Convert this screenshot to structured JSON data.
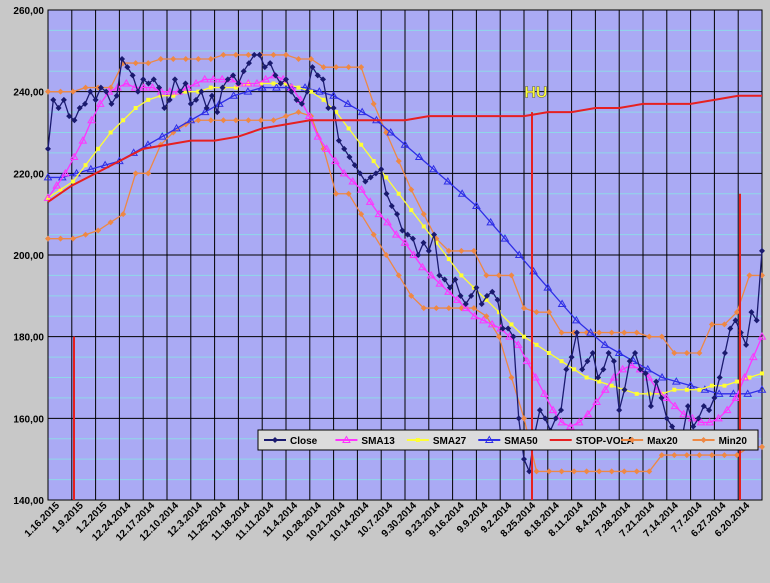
{
  "chart_data": {
    "type": "line",
    "title": "",
    "xlabel": "",
    "ylabel": "",
    "ylim": [
      140,
      260
    ],
    "y_ticks": [
      "140,00",
      "160,00",
      "180,00",
      "200,00",
      "220,00",
      "240,00",
      "260,00"
    ],
    "x_tick_labels": [
      "1.16.2015",
      "1.9.2015",
      "1.2.2015",
      "12.24.2014",
      "12.17.2014",
      "12.10.2014",
      "12.3.2014",
      "11.25.2014",
      "11.18.2014",
      "11.11.2014",
      "11.4.2014",
      "10.28.2014",
      "10.21.2014",
      "10.14.2014",
      "10.7.2014",
      "9.30.2014",
      "9.23.2014",
      "9.16.2014",
      "9.9.2014",
      "9.2.2014",
      "8.25.2014",
      "8.18.2014",
      "8.11.2014",
      "8.4.2014",
      "7.28.2014",
      "7.21.2014",
      "7.14.2014",
      "7.7.2014",
      "6.27.2014",
      "6.20.2014"
    ],
    "annotations": [
      {
        "text": "HU",
        "x": "8.25.2014",
        "y": 240
      }
    ],
    "legend_position": "bottom-right",
    "grid": true,
    "colors": {
      "plot_bg": "#aaaaf4",
      "page_bg": "#c8c8c8",
      "close": "#1a1a6e",
      "sma13": "#ff33ff",
      "sma27": "#ffff33",
      "sma50": "#2e2ee6",
      "stop_vola": "#e62020",
      "max20": "#ee8844",
      "min20": "#ee8844"
    },
    "series": [
      {
        "name": "Close",
        "color_key": "close",
        "marker": "diamond",
        "values": [
          226,
          238,
          236,
          238,
          234,
          233,
          236,
          237,
          240,
          238,
          241,
          240,
          237,
          239,
          248,
          246,
          244,
          240,
          243,
          242,
          243,
          241,
          236,
          238,
          243,
          240,
          242,
          237,
          238,
          240,
          236,
          239,
          235,
          241,
          243,
          244,
          242,
          245,
          247,
          249,
          249,
          246,
          247,
          244,
          242,
          243,
          240,
          238,
          237,
          240,
          246,
          244,
          243,
          236,
          236,
          228,
          226,
          224,
          222,
          220,
          218,
          219,
          220,
          221,
          215,
          212,
          210,
          206,
          205,
          204,
          200,
          203,
          201,
          205,
          195,
          194,
          192,
          194,
          190,
          188,
          190,
          192,
          188,
          190,
          191,
          189,
          182,
          182,
          180,
          160,
          150,
          147,
          156,
          162,
          160,
          157,
          160,
          162,
          172,
          175,
          181,
          172,
          174,
          176,
          170,
          172,
          176,
          174,
          162,
          167,
          174,
          176,
          172,
          171,
          163,
          169,
          165,
          160,
          158,
          156,
          156,
          163,
          158,
          160,
          163,
          162,
          165,
          170,
          176,
          182,
          184,
          181,
          178,
          186,
          184,
          201
        ]
      },
      {
        "name": "SMA13",
        "color_key": "sma13",
        "marker": "triangle",
        "values": [
          214,
          217,
          220,
          224,
          228,
          233,
          237,
          240,
          241,
          242,
          241,
          241,
          241,
          240,
          240,
          240,
          241,
          242,
          243,
          243,
          243,
          243,
          242,
          242,
          242,
          243,
          244,
          243,
          241,
          238,
          234,
          229,
          226,
          223,
          220,
          218,
          216,
          213,
          210,
          208,
          205,
          203,
          200,
          197,
          195,
          193,
          191,
          189,
          187,
          185,
          184,
          183,
          182,
          180,
          178,
          174,
          170,
          166,
          162,
          159,
          158,
          159,
          161,
          164,
          167,
          170,
          172,
          173,
          172,
          170,
          167,
          165,
          163,
          161,
          160,
          159,
          159,
          160,
          162,
          165,
          170,
          175,
          180
        ]
      },
      {
        "name": "SMA27",
        "color_key": "sma27",
        "marker": "square",
        "values": [
          214,
          216,
          218,
          222,
          226,
          230,
          233,
          236,
          238,
          239,
          239,
          240,
          240,
          241,
          241,
          241,
          242,
          242,
          242,
          242,
          241,
          240,
          238,
          235,
          231,
          227,
          223,
          219,
          215,
          211,
          207,
          203,
          199,
          195,
          192,
          189,
          186,
          183,
          180,
          178,
          176,
          174,
          172,
          170,
          169,
          168,
          167,
          166,
          166,
          166,
          167,
          167,
          167,
          168,
          168,
          169,
          170,
          171
        ]
      },
      {
        "name": "SMA50",
        "color_key": "sma50",
        "marker": "triangle",
        "values": [
          219,
          219,
          220,
          221,
          222,
          223,
          225,
          227,
          229,
          231,
          233,
          235,
          237,
          239,
          240,
          241,
          241,
          241,
          241,
          240,
          239,
          237,
          235,
          233,
          230,
          227,
          224,
          221,
          218,
          215,
          212,
          208,
          204,
          200,
          196,
          192,
          188,
          184,
          181,
          178,
          176,
          174,
          172,
          170,
          169,
          168,
          167,
          166,
          166,
          166,
          167
        ]
      },
      {
        "name": "STOP-VOLA",
        "color_key": "stop_vola",
        "marker": "none",
        "values": [
          213,
          217,
          220,
          223,
          226,
          227,
          228,
          228,
          229,
          231,
          232,
          233,
          233,
          233,
          233,
          233,
          234,
          234,
          234,
          234,
          234,
          235,
          235,
          236,
          236,
          237,
          237,
          237,
          238,
          239,
          239
        ]
      },
      {
        "name": "Max20",
        "color_key": "max20",
        "marker": "diamond",
        "values": [
          240,
          240,
          240,
          241,
          241,
          241,
          247,
          247,
          247,
          248,
          248,
          248,
          248,
          248,
          249,
          249,
          249,
          249,
          249,
          249,
          248,
          248,
          246,
          246,
          246,
          246,
          237,
          230,
          223,
          216,
          210,
          204,
          201,
          201,
          201,
          195,
          195,
          195,
          187,
          186,
          186,
          181,
          181,
          181,
          181,
          181,
          181,
          181,
          180,
          180,
          176,
          176,
          176,
          183,
          183,
          186,
          195,
          195
        ]
      },
      {
        "name": "Min20",
        "color_key": "min20",
        "marker": "diamond",
        "values": [
          204,
          204,
          204,
          205,
          206,
          208,
          210,
          220,
          220,
          227,
          230,
          232,
          233,
          233,
          233,
          233,
          233,
          233,
          233,
          234,
          235,
          234,
          226,
          215,
          215,
          210,
          205,
          200,
          195,
          190,
          187,
          187,
          187,
          187,
          187,
          185,
          180,
          170,
          160,
          147,
          147,
          147,
          147,
          147,
          147,
          147,
          147,
          147,
          147,
          151,
          151,
          151,
          151,
          151,
          151,
          151,
          153,
          153
        ]
      }
    ]
  }
}
